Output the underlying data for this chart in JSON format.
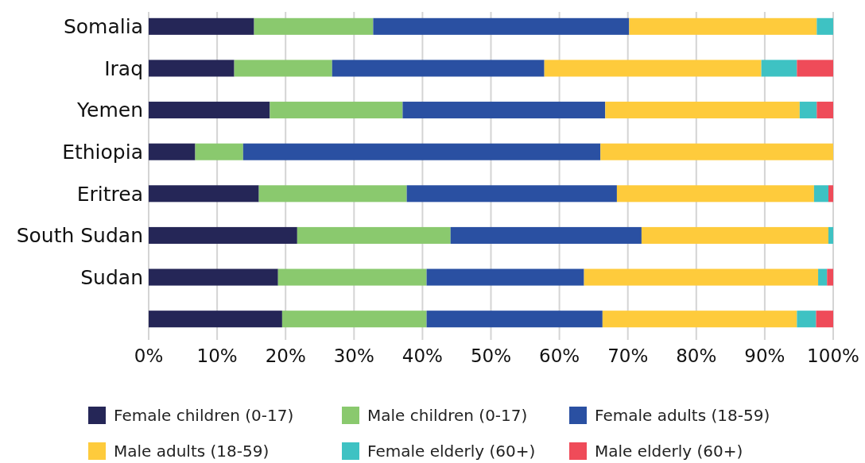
{
  "chart_data": {
    "type": "bar",
    "orientation": "horizontal",
    "stacked": true,
    "categories": [
      "Somalia",
      "Iraq",
      "Yemen",
      "Ethiopia",
      "Eritrea",
      "South Sudan",
      "Sudan",
      null
    ],
    "series": [
      {
        "name": "Female children (0-17)",
        "color": "#252657",
        "values": [
          15.4,
          12.5,
          17.7,
          6.8,
          16.1,
          21.7,
          18.9,
          19.5
        ]
      },
      {
        "name": "Male children (0-17)",
        "color": "#8ac96e",
        "values": [
          17.4,
          14.3,
          19.4,
          7.0,
          21.6,
          22.4,
          21.7,
          21.1
        ]
      },
      {
        "name": "Female adults (18-59)",
        "color": "#2a50a2",
        "values": [
          37.4,
          31.0,
          29.6,
          52.2,
          30.7,
          27.9,
          23.0,
          25.7
        ]
      },
      {
        "name": "Male adults (18-59)",
        "color": "#fecb3c",
        "values": [
          27.4,
          31.7,
          28.4,
          34.0,
          28.8,
          27.3,
          34.2,
          28.4
        ]
      },
      {
        "name": "Female elderly (60+)",
        "color": "#3ec2c3",
        "values": [
          2.4,
          5.2,
          2.5,
          0,
          2.1,
          0.7,
          1.3,
          2.8
        ]
      },
      {
        "name": "Male elderly (60+)",
        "color": "#ef4b59",
        "values": [
          0,
          5.3,
          2.4,
          0,
          0.7,
          0,
          0.9,
          2.5
        ]
      }
    ],
    "xlim": [
      0,
      100
    ],
    "xticks": [
      {
        "value": 0,
        "label": "0%"
      },
      {
        "value": 10,
        "label": "10%"
      },
      {
        "value": 20,
        "label": "20%"
      },
      {
        "value": 30,
        "label": "30%"
      },
      {
        "value": 40,
        "label": "40%"
      },
      {
        "value": 50,
        "label": "50%"
      },
      {
        "value": 60,
        "label": "60%"
      },
      {
        "value": 70,
        "label": "70%"
      },
      {
        "value": 80,
        "label": "80%"
      },
      {
        "value": 90,
        "label": "90%"
      },
      {
        "value": 100,
        "label": "100%"
      }
    ],
    "grid": "x",
    "legend": "bottom"
  }
}
